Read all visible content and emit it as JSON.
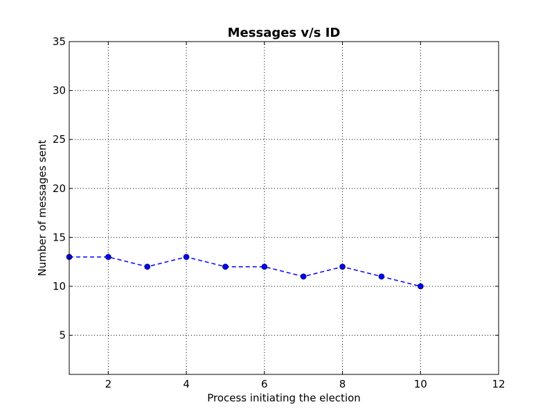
{
  "chart_data": {
    "type": "line",
    "title": "Messages v/s ID",
    "xlabel": "Process initiating the election",
    "ylabel": "Number of messages sent",
    "xlim": [
      1,
      12
    ],
    "ylim": [
      1,
      35
    ],
    "xticks": [
      2,
      4,
      6,
      8,
      10,
      12
    ],
    "yticks": [
      5,
      10,
      15,
      20,
      25,
      30,
      35
    ],
    "grid": true,
    "series": [
      {
        "x": [
          1,
          2,
          3,
          4,
          5,
          6,
          7,
          8,
          9,
          10
        ],
        "values": [
          13,
          13,
          12,
          13,
          12,
          12,
          11,
          12,
          11,
          10
        ],
        "color": "#0000ff",
        "line_style": "dashed",
        "marker": "circle"
      }
    ]
  }
}
